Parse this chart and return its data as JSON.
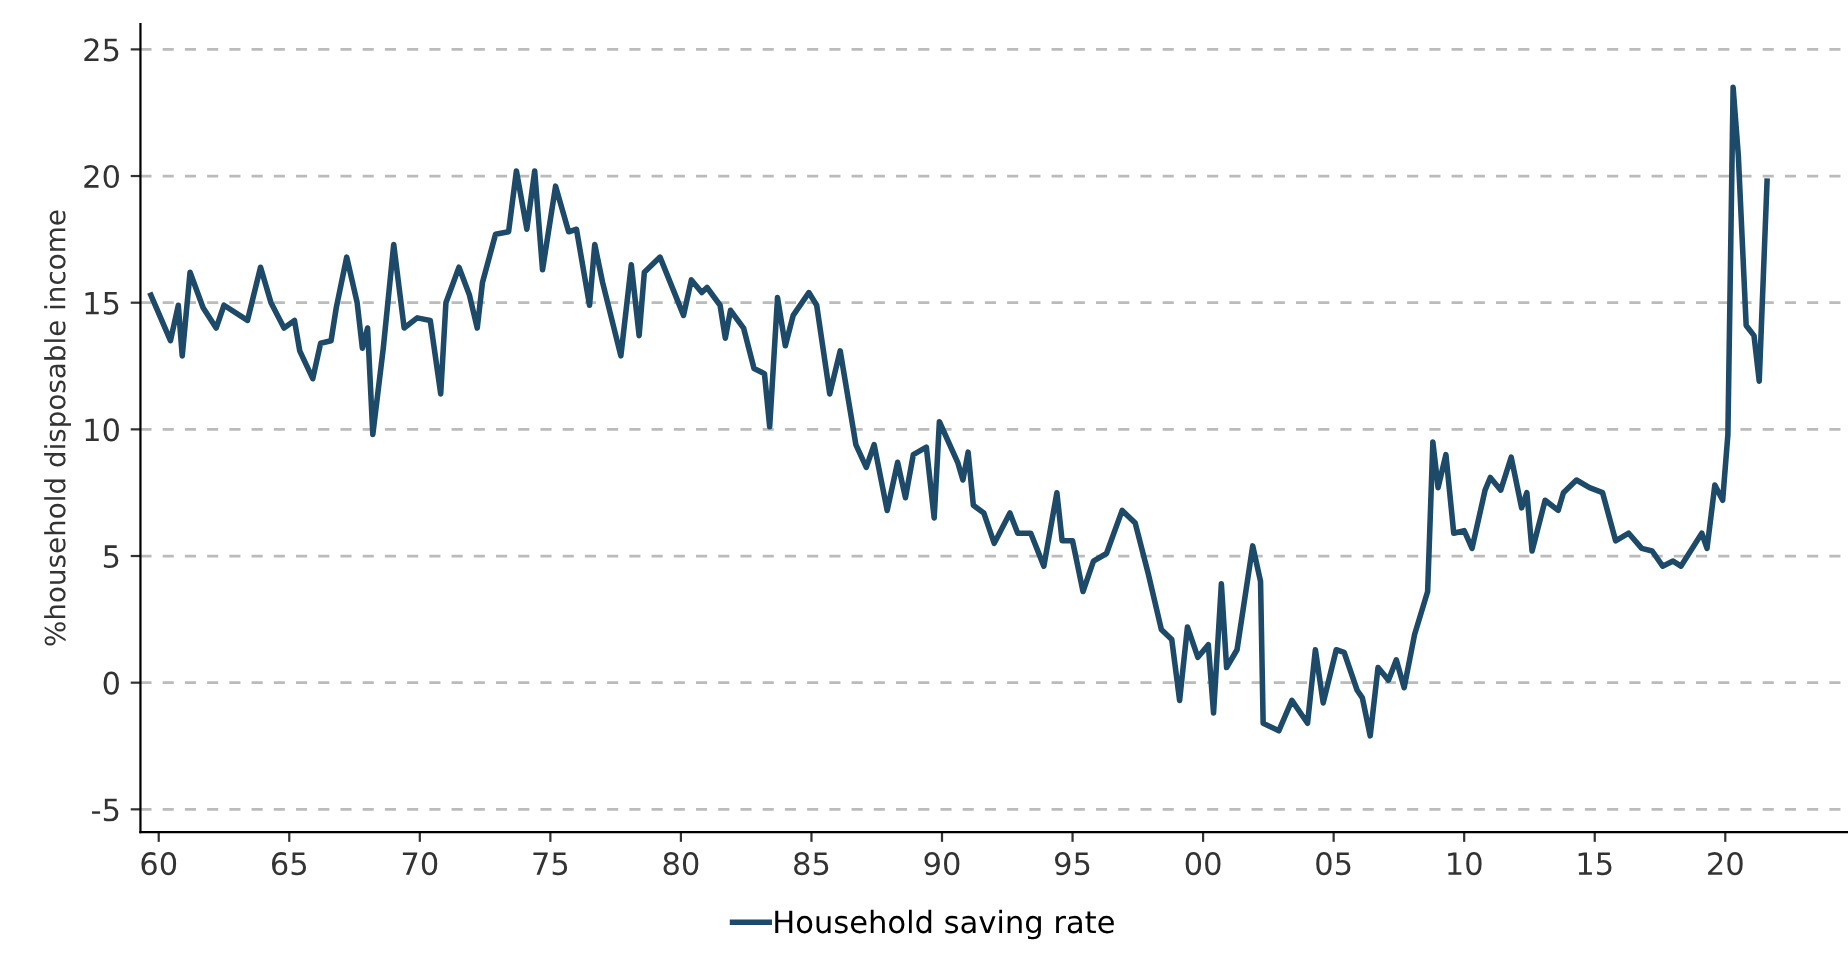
{
  "chart_data": {
    "type": "line",
    "ylabel": "%household disposable income",
    "xlim": [
      1959.3,
      2024.7
    ],
    "ylim": [
      -5.9,
      26
    ],
    "xticks": [
      {
        "value": 1960,
        "label": "60"
      },
      {
        "value": 1965,
        "label": "65"
      },
      {
        "value": 1970,
        "label": "70"
      },
      {
        "value": 1975,
        "label": "75"
      },
      {
        "value": 1980,
        "label": "80"
      },
      {
        "value": 1985,
        "label": "85"
      },
      {
        "value": 1990,
        "label": "90"
      },
      {
        "value": 1995,
        "label": "95"
      },
      {
        "value": 2000,
        "label": "00"
      },
      {
        "value": 2005,
        "label": "05"
      },
      {
        "value": 2010,
        "label": "10"
      },
      {
        "value": 2015,
        "label": "15"
      },
      {
        "value": 2020,
        "label": "20"
      }
    ],
    "yticks": [
      -5,
      0,
      5,
      10,
      15,
      20,
      25
    ],
    "grid": "y",
    "legend": "bottom",
    "marker": "none",
    "line_style": "solid",
    "series": [
      {
        "name": "Household saving rate",
        "color": "#1d4a68",
        "x": [
          1959.7,
          1960.45,
          1960.75,
          1960.9,
          1961.2,
          1961.7,
          1962.2,
          1962.5,
          1963.4,
          1963.9,
          1964.3,
          1964.8,
          1965.2,
          1965.4,
          1965.9,
          1966.2,
          1966.6,
          1966.8,
          1967.2,
          1967.6,
          1967.8,
          1968.0,
          1968.2,
          1968.6,
          1969.0,
          1969.4,
          1969.9,
          1970.4,
          1970.8,
          1971.0,
          1971.5,
          1971.9,
          1972.2,
          1972.4,
          1972.9,
          1973.4,
          1973.7,
          1974.1,
          1974.4,
          1974.7,
          1975.2,
          1975.7,
          1976.0,
          1976.5,
          1976.7,
          1977.0,
          1977.7,
          1978.1,
          1978.4,
          1978.6,
          1979.2,
          1980.1,
          1980.4,
          1980.8,
          1981.0,
          1981.5,
          1981.7,
          1981.9,
          1982.4,
          1982.8,
          1983.2,
          1983.4,
          1983.7,
          1984.0,
          1984.3,
          1984.9,
          1985.2,
          1985.7,
          1986.1,
          1986.7,
          1987.1,
          1987.4,
          1987.9,
          1988.3,
          1988.6,
          1988.9,
          1989.4,
          1989.7,
          1989.9,
          1990.6,
          1990.8,
          1991.0,
          1991.2,
          1991.6,
          1992.0,
          1992.2,
          1992.6,
          1992.9,
          1993.4,
          1993.9,
          1994.4,
          1994.6,
          1995.0,
          1995.4,
          1995.8,
          1996.3,
          1996.9,
          1997.4,
          1997.9,
          1998.4,
          1998.8,
          1999.1,
          1999.4,
          1999.8,
          2000.2,
          2000.4,
          2000.7,
          2000.9,
          2001.3,
          2001.9,
          2002.2,
          2002.3,
          2002.9,
          2003.4,
          2004.0,
          2004.3,
          2004.6,
          2005.1,
          2005.4,
          2005.9,
          2006.1,
          2006.4,
          2006.7,
          2007.1,
          2007.4,
          2007.7,
          2008.1,
          2008.6,
          2008.8,
          2009.0,
          2009.3,
          2009.6,
          2010.0,
          2010.3,
          2010.8,
          2011.0,
          2011.4,
          2011.8,
          2012.2,
          2012.4,
          2012.6,
          2013.1,
          2013.6,
          2013.8,
          2014.3,
          2014.8,
          2015.3,
          2015.8,
          2016.3,
          2016.8,
          2017.2,
          2017.6,
          2018.0,
          2018.3,
          2019.1,
          2019.3,
          2019.6,
          2019.9,
          2020.1,
          2020.3,
          2020.5,
          2020.8,
          2021.1,
          2021.3,
          2021.6
        ],
        "values": [
          15.3,
          13.5,
          14.9,
          12.9,
          16.2,
          14.8,
          14.0,
          14.9,
          14.3,
          16.4,
          15.0,
          14.0,
          14.3,
          13.1,
          12.0,
          13.4,
          13.5,
          14.8,
          16.8,
          15.0,
          13.2,
          14.0,
          9.8,
          13.2,
          17.3,
          14.0,
          14.4,
          14.3,
          11.4,
          15.0,
          16.4,
          15.3,
          14.0,
          15.8,
          17.7,
          17.8,
          20.2,
          17.9,
          20.2,
          16.3,
          19.6,
          17.8,
          17.9,
          14.9,
          17.3,
          15.8,
          12.9,
          16.5,
          13.7,
          16.2,
          16.8,
          14.5,
          15.9,
          15.4,
          15.6,
          14.9,
          13.6,
          14.7,
          14.0,
          12.4,
          12.2,
          10.1,
          15.2,
          13.3,
          14.5,
          15.4,
          14.9,
          11.4,
          13.1,
          9.4,
          8.5,
          9.4,
          6.8,
          8.7,
          7.3,
          9.0,
          9.3,
          6.5,
          10.3,
          8.7,
          8.0,
          9.1,
          7.0,
          6.7,
          5.5,
          5.9,
          6.7,
          5.9,
          5.9,
          4.6,
          7.5,
          5.6,
          5.6,
          3.6,
          4.8,
          5.1,
          6.8,
          6.3,
          4.3,
          2.1,
          1.7,
          -0.7,
          2.2,
          1.0,
          1.5,
          -1.2,
          3.9,
          0.6,
          1.3,
          5.4,
          4.0,
          -1.6,
          -1.9,
          -0.7,
          -1.6,
          1.3,
          -0.8,
          1.3,
          1.2,
          -0.3,
          -0.6,
          -2.1,
          0.6,
          0.1,
          0.9,
          -0.2,
          1.9,
          3.6,
          9.5,
          7.7,
          9.0,
          5.9,
          6.0,
          5.3,
          7.6,
          8.1,
          7.6,
          8.9,
          6.9,
          7.5,
          5.2,
          7.2,
          6.8,
          7.5,
          8.0,
          7.7,
          7.5,
          5.6,
          5.9,
          5.3,
          5.2,
          4.6,
          4.8,
          4.6,
          5.9,
          5.3,
          7.8,
          7.2,
          9.8,
          23.5,
          20.8,
          14.1,
          13.7,
          11.9,
          19.8
        ]
      }
    ]
  }
}
